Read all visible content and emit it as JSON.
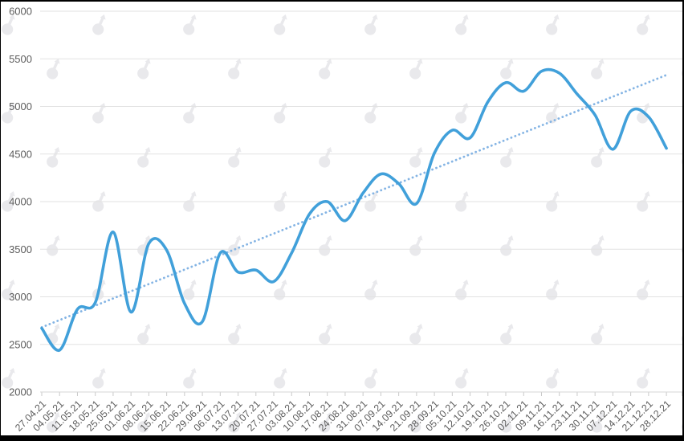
{
  "chart_data": {
    "type": "line",
    "title": "",
    "legend": "none",
    "grid": "horizontal",
    "ylim": [
      2000,
      6000
    ],
    "y_step": 500,
    "y_tick_labels": [
      "6000",
      "5500",
      "5000",
      "4500",
      "4000",
      "3500",
      "3000",
      "2500",
      "2000"
    ],
    "x_tick_labels": [
      "27.04.21",
      "04.05.21",
      "11.05.21",
      "18.05.21",
      "25.05.21",
      "01.06.21",
      "08.06.21",
      "15.06.21",
      "22.06.21",
      "29.06.21",
      "06.07.21",
      "13.07.21",
      "20.07.21",
      "27.07.21",
      "03.08.21",
      "10.08.21",
      "17.08.21",
      "24.08.21",
      "31.08.21",
      "07.09.21",
      "14.09.21",
      "21.09.21",
      "28.09.21",
      "05.10.21",
      "12.10.21",
      "19.10.21",
      "26.10.21",
      "02.11.21",
      "09.11.21",
      "16.11.21",
      "23.11.21",
      "30.11.21",
      "07.12.21",
      "14.12.21",
      "21.12.21",
      "28.12.21"
    ],
    "series": [
      {
        "name": "value",
        "style": "smooth-line",
        "color": "#41a0da",
        "values": [
          2670,
          2440,
          2870,
          2940,
          3680,
          2840,
          3560,
          3490,
          2930,
          2740,
          3460,
          3260,
          3280,
          3160,
          3460,
          3870,
          4000,
          3800,
          4090,
          4290,
          4190,
          3980,
          4510,
          4750,
          4670,
          5050,
          5250,
          5160,
          5370,
          5350,
          5130,
          4910,
          4550,
          4950,
          4890,
          4560
        ]
      },
      {
        "name": "trend",
        "style": "dotted-straight-line",
        "color": "#84b4e4",
        "start": 2680,
        "end": 5330
      }
    ],
    "colors": {
      "gridline": "#e2e2e2",
      "axis_line": "#d6d6d6",
      "tick": "#c9c9c9",
      "label": "#5d5d5d",
      "watermark": "#e9e9ec",
      "frame_border": "#000000",
      "background": "#ffffff"
    },
    "watermark_icon": "forklog-logo"
  }
}
